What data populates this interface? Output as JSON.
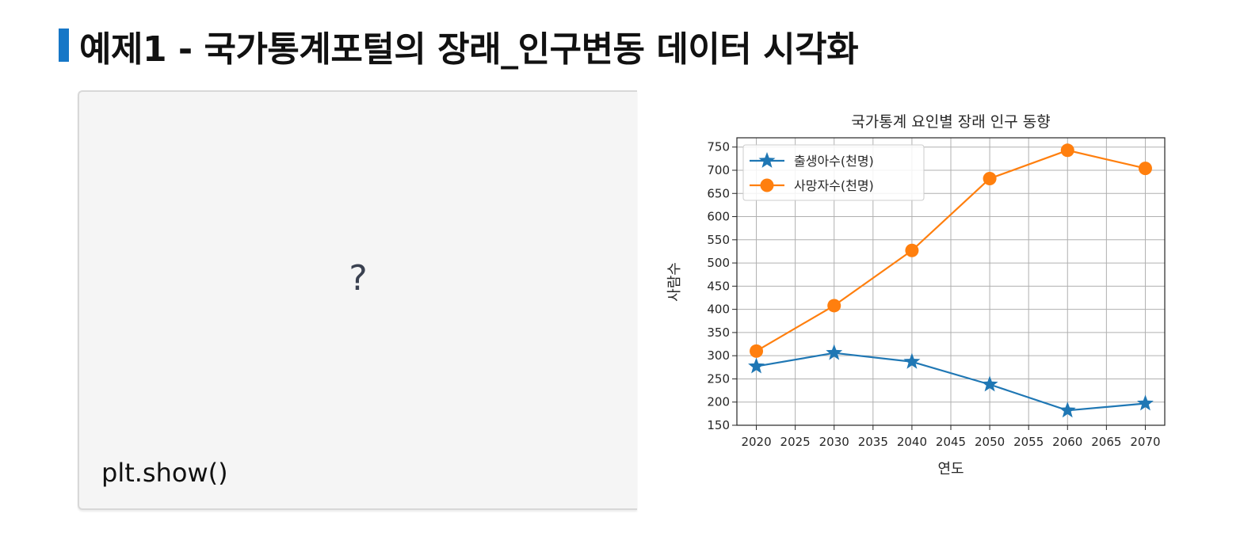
{
  "header": {
    "title": "예제1 - 국가통계포털의 장래_인구변동 데이터 시각화",
    "accent_color": "#1677c7"
  },
  "code_panel": {
    "placeholder": "?",
    "code": "plt.show()"
  },
  "chart_data": {
    "type": "line",
    "title": "국가통계 요인별 장래 인구 동향",
    "xlabel": "연도",
    "ylabel": "사람수",
    "x": [
      2020,
      2030,
      2040,
      2050,
      2060,
      2070
    ],
    "xlim": [
      2017.5,
      2072.5
    ],
    "ylim": [
      150,
      770
    ],
    "xticks": [
      2020,
      2025,
      2030,
      2035,
      2040,
      2045,
      2050,
      2055,
      2060,
      2065,
      2070
    ],
    "yticks": [
      150,
      200,
      250,
      300,
      350,
      400,
      450,
      500,
      550,
      600,
      650,
      700,
      750
    ],
    "grid": true,
    "legend": "top-left",
    "series": [
      {
        "name": "출생아수(천명)",
        "values": [
          277,
          306,
          287,
          238,
          182,
          197
        ],
        "color": "#1f77b4",
        "marker": "star"
      },
      {
        "name": "사망자수(천명)",
        "values": [
          310,
          408,
          527,
          682,
          743,
          704
        ],
        "color": "#ff7f0e",
        "marker": "circle"
      }
    ]
  }
}
